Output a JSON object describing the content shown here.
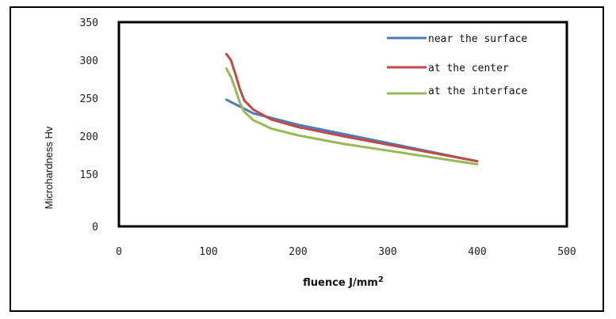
{
  "chart_data": {
    "type": "line",
    "title": "",
    "xlabel": "fluence J/mm",
    "xlabel_sup": "2",
    "ylabel": "Microhardness Hv",
    "xlim": [
      0,
      500
    ],
    "ylim": [
      0,
      350
    ],
    "x_ticks": [
      "0",
      "100",
      "200",
      "300",
      "400",
      "500"
    ],
    "y_ticks": [
      "0",
      "150",
      "200",
      "250",
      "300",
      "350"
    ],
    "grid": false,
    "legend_position": "top-right",
    "series": [
      {
        "name": "near the surface",
        "color": "#4a7ebb",
        "x": [
          120,
          150,
          200,
          250,
          300,
          350,
          400
        ],
        "y": [
          248,
          230,
          215,
          203,
          191,
          179,
          167
        ]
      },
      {
        "name": "at the center",
        "color": "#be4b48",
        "x": [
          120,
          125,
          130,
          135,
          140,
          150,
          170,
          200,
          250,
          300,
          350,
          400
        ],
        "y": [
          308,
          300,
          282,
          262,
          247,
          235,
          222,
          212,
          200,
          189,
          178,
          167
        ]
      },
      {
        "name": "at the interface",
        "color": "#98b954",
        "x": [
          120,
          125,
          130,
          135,
          140,
          150,
          170,
          200,
          250,
          300,
          350,
          400
        ],
        "y": [
          289,
          278,
          262,
          244,
          232,
          221,
          210,
          201,
          190,
          181,
          172,
          163
        ]
      }
    ]
  }
}
